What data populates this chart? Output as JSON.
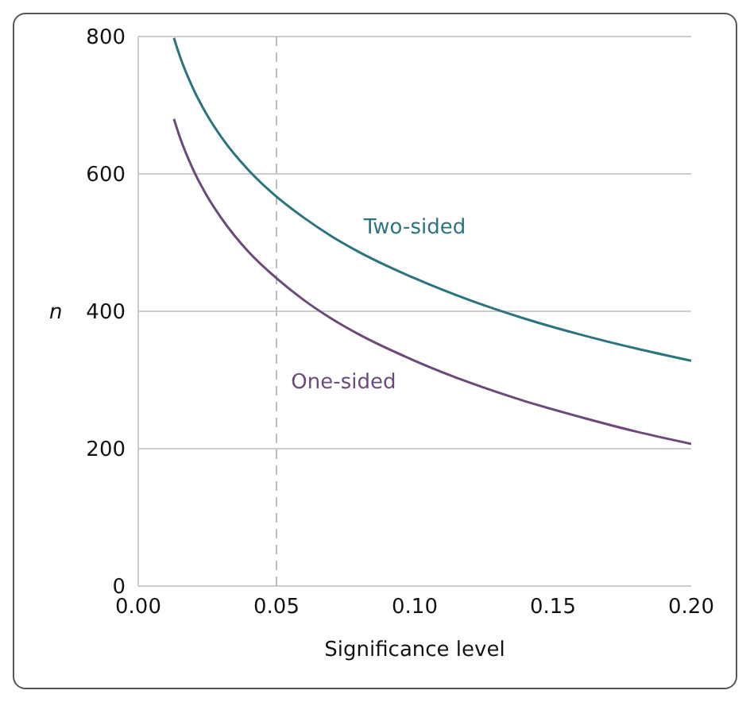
{
  "chart_data": {
    "type": "line",
    "xlabel": "Significance level",
    "ylabel": "n",
    "x": [
      0.0129,
      0.015,
      0.02,
      0.025,
      0.03,
      0.04,
      0.05,
      0.06,
      0.07,
      0.08,
      0.1,
      0.12,
      0.14,
      0.16,
      0.18,
      0.2
    ],
    "series": [
      {
        "name": "Two-sided",
        "color": "#2a7480",
        "values": [
          798,
          772,
          723,
          685,
          654,
          605,
          567,
          536,
          509,
          486,
          448,
          416,
          389,
          366,
          346,
          328
        ]
      },
      {
        "name": "One-sided",
        "color": "#6b4a7a",
        "values": [
          680,
          654,
          605,
          567,
          536,
          486,
          448,
          416,
          389,
          366,
          328,
          296,
          269,
          246,
          225,
          207
        ]
      }
    ],
    "xlim": [
      0,
      0.2
    ],
    "xticks": [
      {
        "value": 0,
        "label": "0.00"
      },
      {
        "value": 0.05,
        "label": "0.05"
      },
      {
        "value": 0.1,
        "label": "0.10"
      },
      {
        "value": 0.15,
        "label": "0.15"
      },
      {
        "value": 0.2,
        "label": "0.20"
      }
    ],
    "ylim": [
      0,
      800
    ],
    "yticks": [
      0,
      200,
      400,
      600,
      800
    ],
    "ref_lines": [
      {
        "axis": "x",
        "value": 0.05,
        "color": "#bbbbbb",
        "line_style": "dashed"
      }
    ],
    "grid": "y",
    "marker": "none",
    "line_style": "solid"
  }
}
